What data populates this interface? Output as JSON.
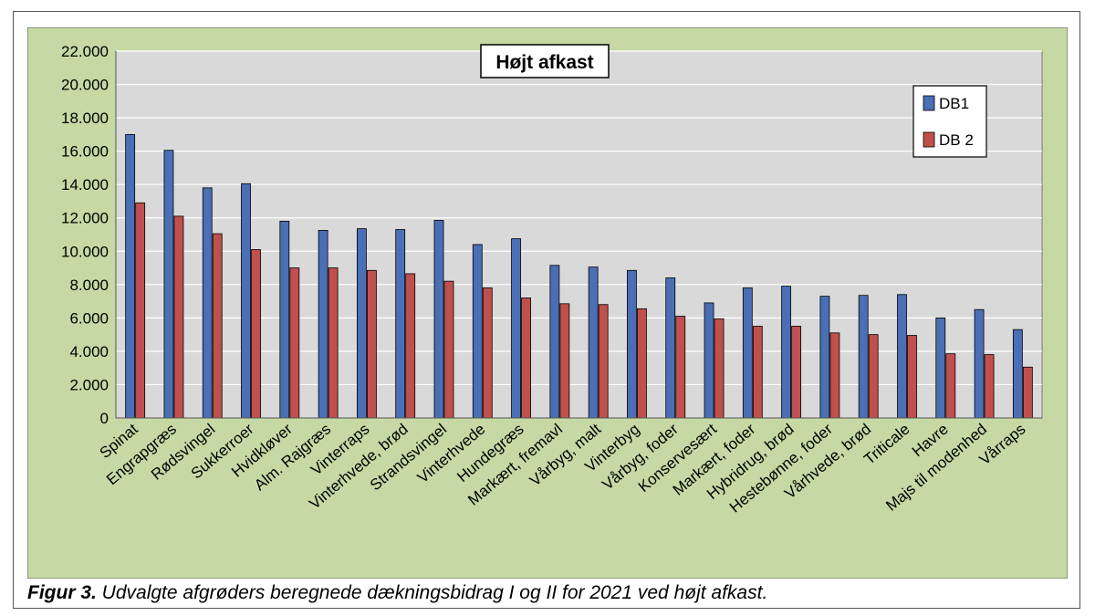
{
  "chart_data": {
    "type": "bar",
    "title": "Højt afkast",
    "xlabel": "",
    "ylabel": "",
    "ylim": [
      0,
      22000
    ],
    "y_ticks": [
      "0",
      "2.000",
      "4.000",
      "6.000",
      "8.000",
      "10.000",
      "12.000",
      "14.000",
      "16.000",
      "18.000",
      "20.000",
      "22.000"
    ],
    "grid": true,
    "legend_position": "top-right",
    "categories": [
      "Spinat",
      "Engrapgræs",
      "Rødsvingel",
      "Sukkerroer",
      "Hvidkløver",
      "Alm. Rajgræs",
      "Vinterraps",
      "Vinterhvede, brød",
      "Strandsvingel",
      "Vinterhvede",
      "Hundegræs",
      "Markært, fremavl",
      "Vårbyg, malt",
      "Vinterbyg",
      "Vårbyg, foder",
      "Konservesært",
      "Markært, foder",
      "Hybridrug, brød",
      "Hestebønne, foder",
      "Vårhvede, brød",
      "Triticale",
      "Havre",
      "Majs til modenhed",
      "Vårraps"
    ],
    "series": [
      {
        "name": "DB1",
        "color": "#4a6fb5",
        "values": [
          17000,
          16050,
          13800,
          14050,
          11800,
          11250,
          11350,
          11300,
          11850,
          10400,
          10750,
          9150,
          9050,
          8850,
          8400,
          6900,
          7800,
          7900,
          7300,
          7350,
          7400,
          6000,
          6500,
          5300
        ]
      },
      {
        "name": "DB 2",
        "color": "#c0504d",
        "values": [
          12900,
          12100,
          11050,
          10100,
          9000,
          9000,
          8850,
          8650,
          8200,
          7800,
          7200,
          6850,
          6800,
          6550,
          6100,
          5950,
          5500,
          5500,
          5100,
          5000,
          4950,
          3850,
          3800,
          3050
        ]
      }
    ]
  },
  "colors": {
    "outer_background": "#c6d9a4",
    "plot_background": "#d9d9d9",
    "gridline": "#ffffff"
  },
  "caption": {
    "label": "Figur 3.",
    "text": " Udvalgte afgrøders beregnede dækningsbidrag I og II for 2021 ved højt afkast."
  }
}
